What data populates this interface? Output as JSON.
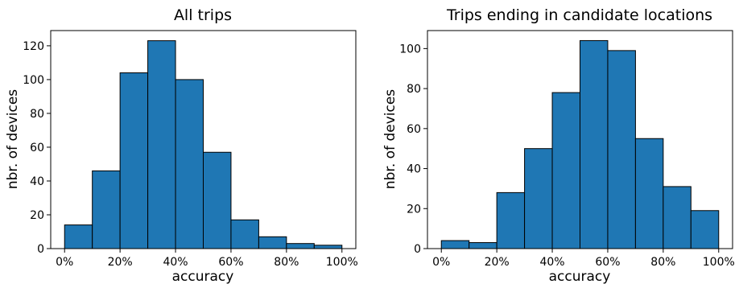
{
  "chart_data": [
    {
      "type": "bar",
      "title": "All trips",
      "xlabel": "accuracy",
      "ylabel": "nbr. of devices",
      "bin_edges": [
        0,
        10,
        20,
        30,
        40,
        50,
        60,
        70,
        80,
        90,
        100
      ],
      "values": [
        14,
        46,
        104,
        123,
        100,
        57,
        17,
        7,
        3,
        2
      ],
      "xticks": [
        "0%",
        "20%",
        "40%",
        "60%",
        "80%",
        "100%"
      ],
      "xtick_values": [
        0,
        20,
        40,
        60,
        80,
        100
      ],
      "yticks": [
        0,
        20,
        40,
        60,
        80,
        100,
        120
      ],
      "xlim": [
        -5,
        105
      ],
      "ylim": [
        0,
        129
      ],
      "bar_color": "#1f77b4",
      "grid": false
    },
    {
      "type": "bar",
      "title": "Trips ending in candidate locations",
      "xlabel": "accuracy",
      "ylabel": "nbr. of devices",
      "bin_edges": [
        0,
        10,
        20,
        30,
        40,
        50,
        60,
        70,
        80,
        90,
        100
      ],
      "values": [
        4,
        3,
        28,
        50,
        78,
        104,
        99,
        55,
        31,
        19
      ],
      "xticks": [
        "0%",
        "20%",
        "40%",
        "60%",
        "80%",
        "100%"
      ],
      "xtick_values": [
        0,
        20,
        40,
        60,
        80,
        100
      ],
      "yticks": [
        0,
        20,
        40,
        60,
        80,
        100
      ],
      "xlim": [
        -5,
        105
      ],
      "ylim": [
        0,
        109
      ],
      "bar_color": "#1f77b4",
      "grid": false
    }
  ]
}
